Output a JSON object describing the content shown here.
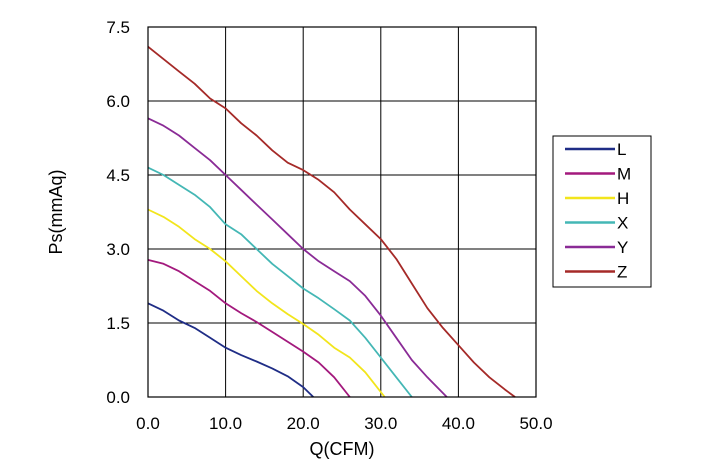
{
  "chart_data": {
    "type": "line",
    "title": "",
    "xlabel": "Q(CFM)",
    "ylabel": "Ps(mmAq)",
    "xlim": [
      0,
      50
    ],
    "ylim": [
      0,
      7.5
    ],
    "x_ticks": [
      "0.0",
      "10.0",
      "20.0",
      "30.0",
      "40.0",
      "50.0"
    ],
    "y_ticks": [
      "0.0",
      "1.5",
      "3.0",
      "4.5",
      "6.0",
      "7.5"
    ],
    "grid": true,
    "legend_position": "right",
    "series": [
      {
        "name": "L",
        "color": "#1f2d86",
        "points": [
          [
            0,
            1.9
          ],
          [
            2,
            1.75
          ],
          [
            4,
            1.55
          ],
          [
            6,
            1.4
          ],
          [
            8,
            1.2
          ],
          [
            10,
            1.0
          ],
          [
            12,
            0.85
          ],
          [
            14,
            0.72
          ],
          [
            16,
            0.58
          ],
          [
            18,
            0.42
          ],
          [
            20,
            0.2
          ],
          [
            21.3,
            0.0
          ]
        ]
      },
      {
        "name": "M",
        "color": "#a3197d",
        "points": [
          [
            0,
            2.78
          ],
          [
            2,
            2.7
          ],
          [
            4,
            2.55
          ],
          [
            6,
            2.35
          ],
          [
            8,
            2.15
          ],
          [
            10,
            1.9
          ],
          [
            12,
            1.7
          ],
          [
            14,
            1.52
          ],
          [
            16,
            1.32
          ],
          [
            18,
            1.12
          ],
          [
            20,
            0.92
          ],
          [
            22,
            0.7
          ],
          [
            24,
            0.4
          ],
          [
            26,
            0.0
          ]
        ]
      },
      {
        "name": "H",
        "color": "#f2e51c",
        "points": [
          [
            0,
            3.8
          ],
          [
            2,
            3.65
          ],
          [
            4,
            3.45
          ],
          [
            6,
            3.2
          ],
          [
            8,
            3.0
          ],
          [
            10,
            2.75
          ],
          [
            12,
            2.45
          ],
          [
            14,
            2.15
          ],
          [
            16,
            1.9
          ],
          [
            18,
            1.68
          ],
          [
            20,
            1.48
          ],
          [
            22,
            1.26
          ],
          [
            24,
            1.0
          ],
          [
            26,
            0.8
          ],
          [
            28,
            0.5
          ],
          [
            30.5,
            0.0
          ]
        ]
      },
      {
        "name": "X",
        "color": "#44b7b5",
        "points": [
          [
            0,
            4.65
          ],
          [
            2,
            4.5
          ],
          [
            4,
            4.3
          ],
          [
            6,
            4.1
          ],
          [
            8,
            3.85
          ],
          [
            10,
            3.5
          ],
          [
            12,
            3.3
          ],
          [
            14,
            3.0
          ],
          [
            16,
            2.7
          ],
          [
            18,
            2.45
          ],
          [
            20,
            2.2
          ],
          [
            22,
            2.0
          ],
          [
            24,
            1.78
          ],
          [
            26,
            1.55
          ],
          [
            28,
            1.2
          ],
          [
            30,
            0.8
          ],
          [
            32,
            0.4
          ],
          [
            34,
            0.0
          ]
        ]
      },
      {
        "name": "Y",
        "color": "#8a2b96",
        "points": [
          [
            0,
            5.65
          ],
          [
            2,
            5.5
          ],
          [
            4,
            5.3
          ],
          [
            6,
            5.05
          ],
          [
            8,
            4.8
          ],
          [
            10,
            4.5
          ],
          [
            12,
            4.2
          ],
          [
            14,
            3.9
          ],
          [
            16,
            3.6
          ],
          [
            18,
            3.3
          ],
          [
            20,
            3.0
          ],
          [
            22,
            2.75
          ],
          [
            24,
            2.55
          ],
          [
            26,
            2.35
          ],
          [
            28,
            2.05
          ],
          [
            30,
            1.65
          ],
          [
            32,
            1.2
          ],
          [
            34,
            0.75
          ],
          [
            36,
            0.4
          ],
          [
            38.5,
            0.0
          ]
        ]
      },
      {
        "name": "Z",
        "color": "#a52a28",
        "points": [
          [
            0,
            7.1
          ],
          [
            2,
            6.85
          ],
          [
            4,
            6.6
          ],
          [
            6,
            6.35
          ],
          [
            8,
            6.05
          ],
          [
            10,
            5.85
          ],
          [
            12,
            5.55
          ],
          [
            14,
            5.3
          ],
          [
            16,
            5.0
          ],
          [
            18,
            4.75
          ],
          [
            20,
            4.6
          ],
          [
            22,
            4.4
          ],
          [
            24,
            4.15
          ],
          [
            26,
            3.8
          ],
          [
            28,
            3.5
          ],
          [
            30,
            3.2
          ],
          [
            32,
            2.8
          ],
          [
            34,
            2.3
          ],
          [
            36,
            1.8
          ],
          [
            38,
            1.4
          ],
          [
            40,
            1.05
          ],
          [
            42,
            0.7
          ],
          [
            44,
            0.4
          ],
          [
            46,
            0.15
          ],
          [
            47.3,
            0.0
          ]
        ]
      }
    ]
  }
}
